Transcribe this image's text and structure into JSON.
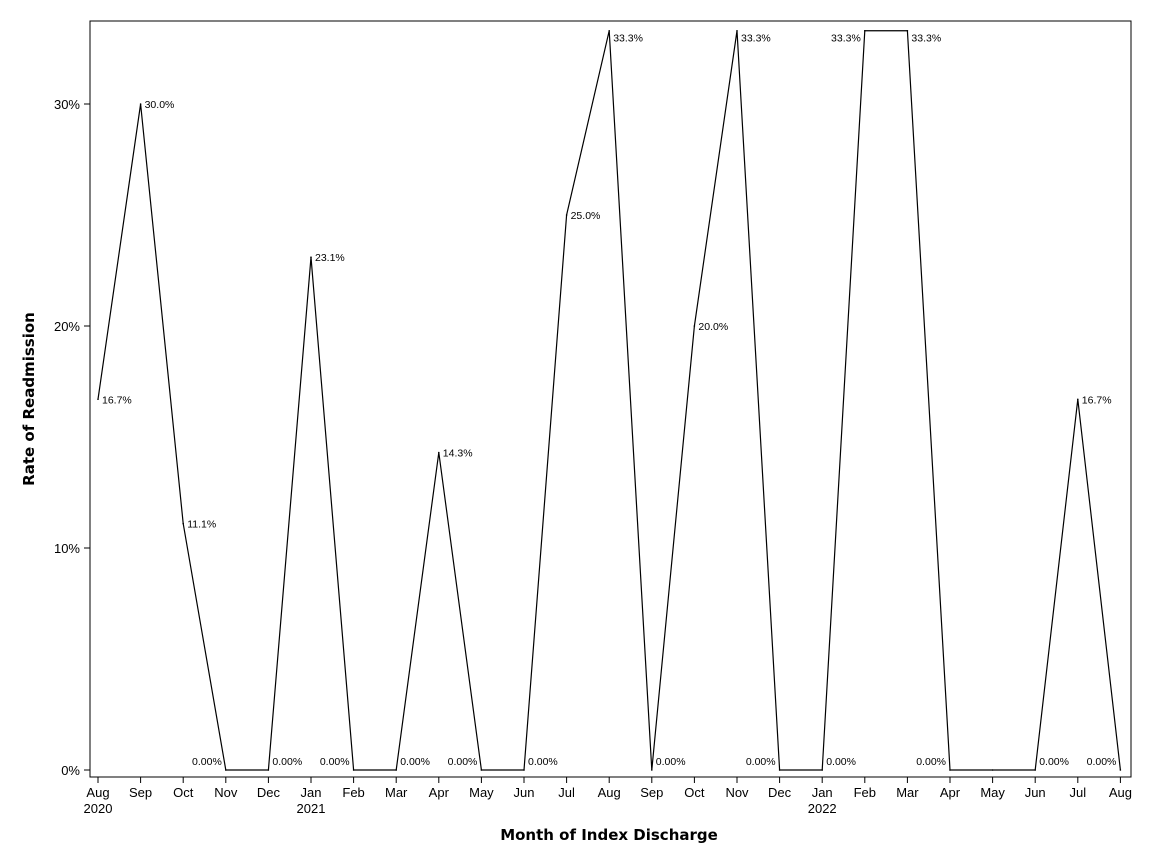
{
  "chart_data": {
    "type": "line",
    "title": "",
    "xlabel": "Month of Index Discharge",
    "ylabel": "Rate of Readmission",
    "ylim": [
      0,
      33.3
    ],
    "yticks": [
      "0%",
      "10%",
      "20%",
      "30%"
    ],
    "ytick_values": [
      0,
      10,
      20,
      30
    ],
    "grid": false,
    "categories": [
      "Aug 2020",
      "Sep 2020",
      "Oct 2020",
      "Nov 2020",
      "Dec 2020",
      "Jan 2021",
      "Feb 2021",
      "Mar 2021",
      "Apr 2021",
      "May 2021",
      "Jun 2021",
      "Jul 2021",
      "Aug 2021",
      "Sep 2021",
      "Oct 2021",
      "Nov 2021",
      "Dec 2021",
      "Jan 2022",
      "Feb 2022",
      "Mar 2022",
      "Apr 2022",
      "May 2022",
      "Jun 2022",
      "Jul 2022",
      "Aug 2022"
    ],
    "x_tick_months": [
      "Aug",
      "Sep",
      "Oct",
      "Nov",
      "Dec",
      "Jan",
      "Feb",
      "Mar",
      "Apr",
      "May",
      "Jun",
      "Jul",
      "Aug",
      "Sep",
      "Oct",
      "Nov",
      "Dec",
      "Jan",
      "Feb",
      "Mar",
      "Apr",
      "May",
      "Jun",
      "Jul",
      "Aug"
    ],
    "x_tick_years": [
      "2020",
      "",
      "",
      "",
      "",
      "2021",
      "",
      "",
      "",
      "",
      "",
      "",
      "",
      "",
      "",
      "",
      "",
      "2022",
      "",
      "",
      "",
      "",
      "",
      "",
      ""
    ],
    "series": [
      {
        "values": [
          16.7,
          30.0,
          11.1,
          0,
          0,
          23.1,
          0,
          0,
          14.3,
          0,
          0,
          25.0,
          33.3,
          0,
          20.0,
          33.3,
          0,
          0,
          33.3,
          33.3,
          0,
          0,
          0,
          16.7,
          0
        ],
        "labels": [
          "16.7%",
          "30.0%",
          "11.1%",
          "0.00%",
          "0.00%",
          "23.1%",
          "0.00%",
          "0.00%",
          "14.3%",
          "0.00%",
          "0.00%",
          "25.0%",
          "33.3%",
          "0.00%",
          "20.0%",
          "33.3%",
          "0.00%",
          "0.00%",
          "33.3%",
          "33.3%",
          "0.00%",
          "",
          "0.00%",
          "16.7%",
          "0.00%"
        ],
        "color": "#000000"
      }
    ]
  }
}
